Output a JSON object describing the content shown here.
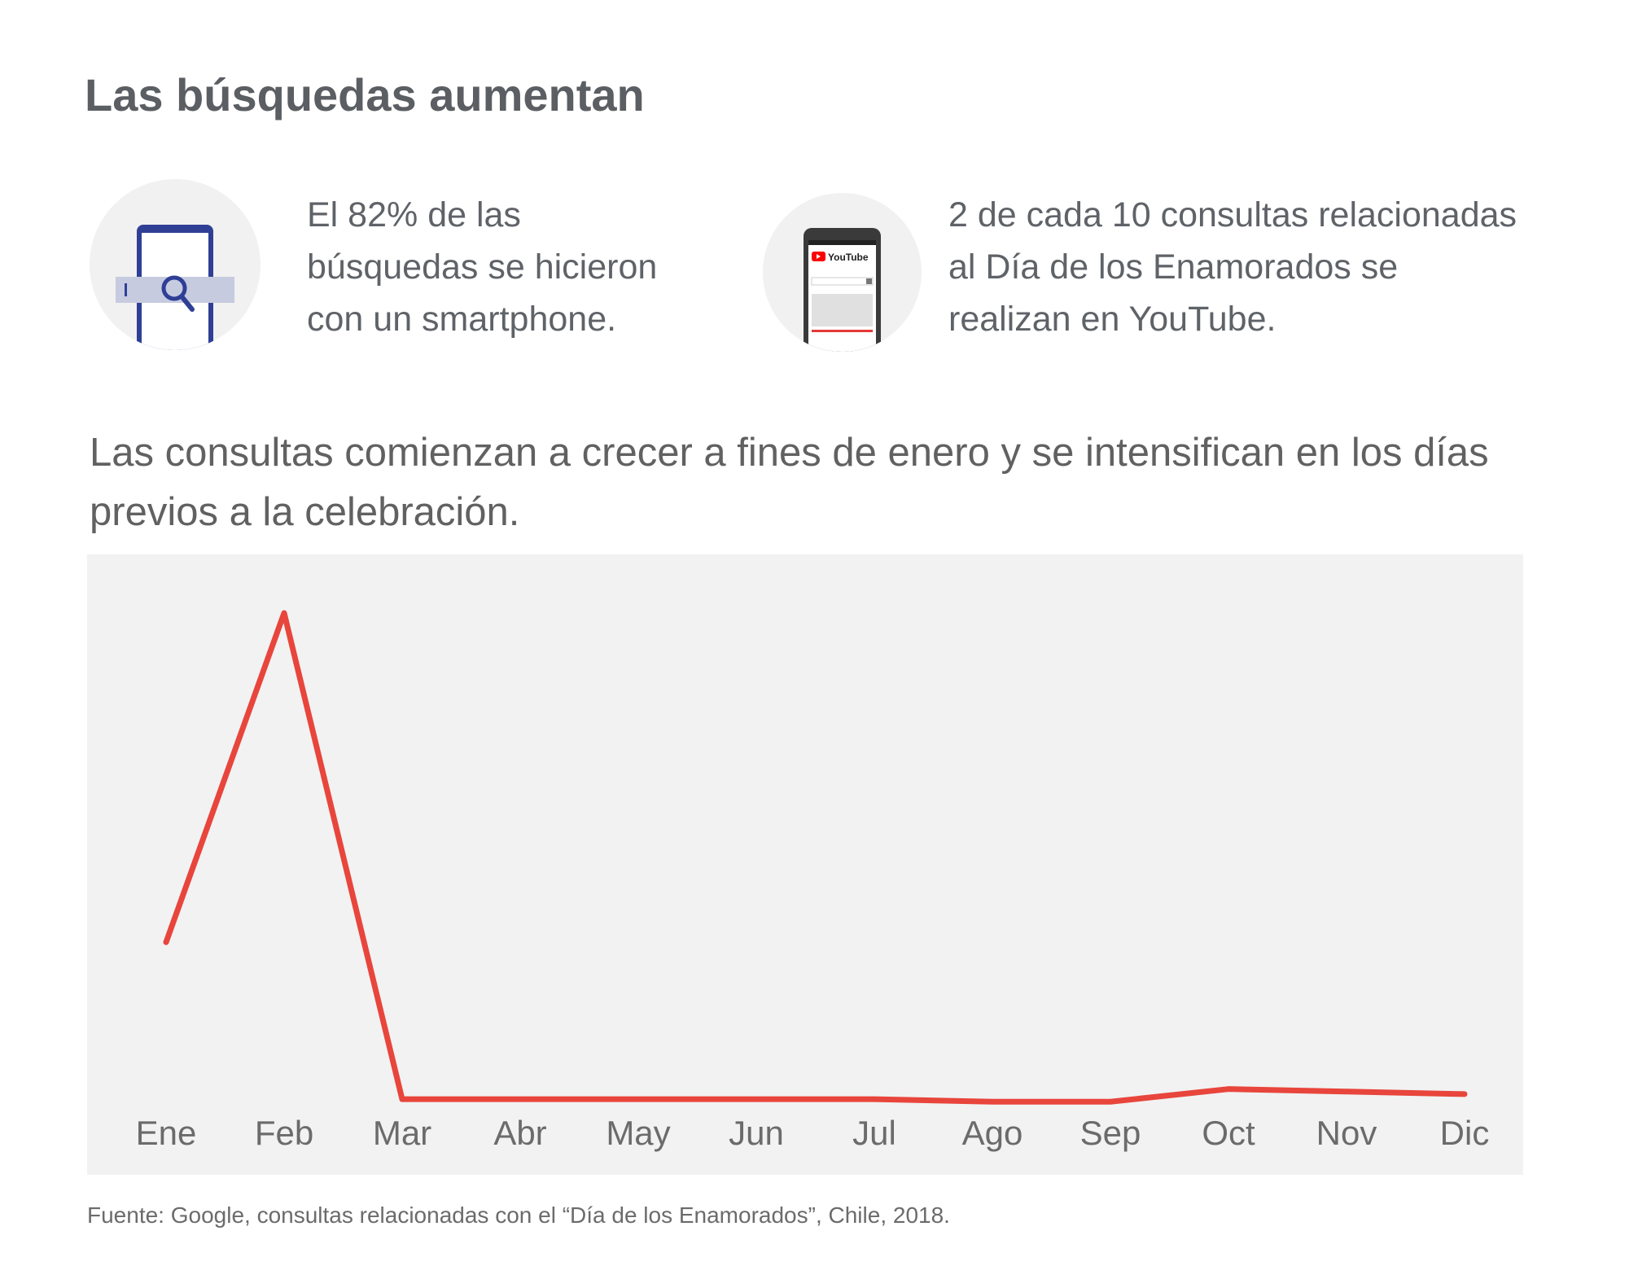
{
  "header": {
    "title": "Las búsquedas aumentan"
  },
  "stats": [
    {
      "icon": "smartphone-search-icon",
      "lines": [
        "El 82% de las",
        "búsquedas se hicieron",
        "con un smartphone."
      ]
    },
    {
      "icon": "youtube-phone-icon",
      "icon_text": "YouTube",
      "lines": [
        "2 de cada 10 consultas relacionadas",
        "al Día de los Enamorados se",
        "realizan en YouTube."
      ]
    }
  ],
  "subtitle": {
    "lines": [
      "Las consultas comienzan a crecer a fines de enero y se intensifican en los días",
      "previos a la celebración."
    ]
  },
  "colors": {
    "line": "#e8453c",
    "panel": "#f2f2f2",
    "phone_blue": "#2f3f96",
    "youtube_red": "#ff0000"
  },
  "chart_data": {
    "type": "line",
    "categories": [
      "Ene",
      "Feb",
      "Mar",
      "Abr",
      "May",
      "Jun",
      "Jul",
      "Ago",
      "Sep",
      "Oct",
      "Nov",
      "Dic"
    ],
    "series": [
      {
        "values": [
          35,
          100,
          4,
          4,
          4,
          4,
          4,
          3.5,
          3.5,
          6,
          5.5,
          5
        ]
      }
    ],
    "ylim": [
      0,
      100
    ],
    "grid": false,
    "legend": "none"
  },
  "footer": {
    "source": "Fuente: Google, consultas relacionadas con el “Día de los Enamorados”, Chile, 2018."
  }
}
